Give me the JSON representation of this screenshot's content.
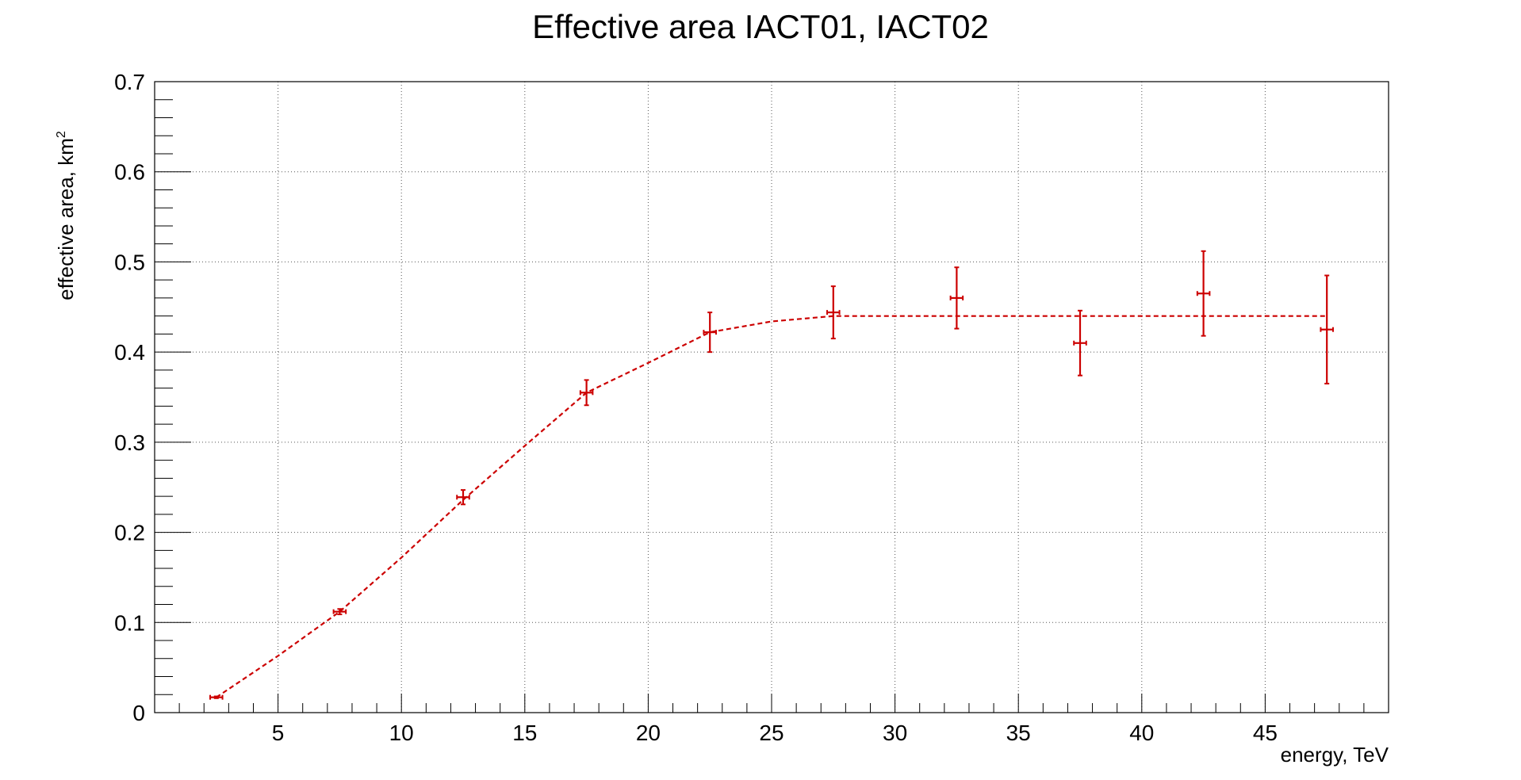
{
  "chart_data": {
    "type": "scatter",
    "title": "Effective area IACT01, IACT02",
    "xlabel": "energy, TeV",
    "ylabel_main": "effective area, km",
    "ylabel_sup": "2",
    "xlim": [
      0,
      50
    ],
    "ylim": [
      0,
      0.7
    ],
    "x_ticks": [
      5,
      10,
      15,
      20,
      25,
      30,
      35,
      40,
      45
    ],
    "x_tick_labels": [
      "5",
      "10",
      "15",
      "20",
      "25",
      "30",
      "35",
      "40",
      "45"
    ],
    "y_ticks": [
      0,
      0.1,
      0.2,
      0.3,
      0.4,
      0.5,
      0.6,
      0.7
    ],
    "y_tick_labels": [
      "0",
      "0.1",
      "0.2",
      "0.3",
      "0.4",
      "0.5",
      "0.6",
      "0.7"
    ],
    "grid": true,
    "series": [
      {
        "points": [
          {
            "x": 2.5,
            "y": 0.017,
            "xerr": 0.25,
            "yerr": 0.001
          },
          {
            "x": 7.5,
            "y": 0.112,
            "xerr": 0.25,
            "yerr": 0.003
          },
          {
            "x": 12.5,
            "y": 0.239,
            "xerr": 0.25,
            "yerr": 0.008
          },
          {
            "x": 17.5,
            "y": 0.355,
            "xerr": 0.25,
            "yerr": 0.014
          },
          {
            "x": 22.5,
            "y": 0.422,
            "xerr": 0.25,
            "yerr": 0.022
          },
          {
            "x": 27.5,
            "y": 0.444,
            "xerr": 0.25,
            "yerr": 0.029
          },
          {
            "x": 32.5,
            "y": 0.46,
            "xerr": 0.25,
            "yerr": 0.034
          },
          {
            "x": 37.5,
            "y": 0.41,
            "xerr": 0.25,
            "yerr": 0.036
          },
          {
            "x": 42.5,
            "y": 0.465,
            "xerr": 0.25,
            "yerr": 0.047
          },
          {
            "x": 47.5,
            "y": 0.425,
            "xerr": 0.25,
            "yerr": 0.06
          }
        ]
      }
    ],
    "fit_curve": [
      [
        2.5,
        0.017
      ],
      [
        5,
        0.063
      ],
      [
        7.5,
        0.112
      ],
      [
        10,
        0.172
      ],
      [
        12.5,
        0.236
      ],
      [
        15,
        0.296
      ],
      [
        17.5,
        0.355
      ],
      [
        20,
        0.388
      ],
      [
        22.5,
        0.422
      ],
      [
        25,
        0.434
      ],
      [
        27.5,
        0.44
      ],
      [
        30,
        0.44
      ],
      [
        35,
        0.44
      ],
      [
        40,
        0.44
      ],
      [
        45,
        0.44
      ],
      [
        47.5,
        0.44
      ]
    ],
    "colors": {
      "series": "#cc0000",
      "axis": "#000000",
      "grid": "#555555"
    }
  }
}
